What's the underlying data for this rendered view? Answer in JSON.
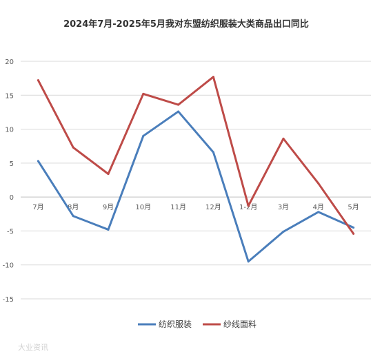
{
  "chart_data": {
    "type": "line",
    "title": "2024年7月-2025年5月我对东盟纺织服装大类商品出口同比",
    "categories": [
      "7月",
      "8月",
      "9月",
      "10月",
      "11月",
      "12月",
      "1-2月",
      "3月",
      "4月",
      "5月"
    ],
    "series": [
      {
        "name": "纺织服装",
        "color": "#4a7ebb",
        "values": [
          5.3,
          -2.8,
          -4.8,
          9.0,
          12.6,
          6.6,
          -9.5,
          -5.1,
          -2.2,
          -4.5
        ]
      },
      {
        "name": "纱线面料",
        "color": "#be4b48",
        "values": [
          17.2,
          7.3,
          3.4,
          15.2,
          13.6,
          17.7,
          -1.3,
          8.6,
          2.0,
          -5.4
        ]
      }
    ],
    "ylim": [
      -15,
      20
    ],
    "yticks": [
      20,
      15,
      10,
      5,
      0,
      -5,
      -10,
      -15
    ],
    "grid": true,
    "legend_position": "bottom",
    "xlabel": "",
    "ylabel": ""
  },
  "watermark": "大业资讯"
}
